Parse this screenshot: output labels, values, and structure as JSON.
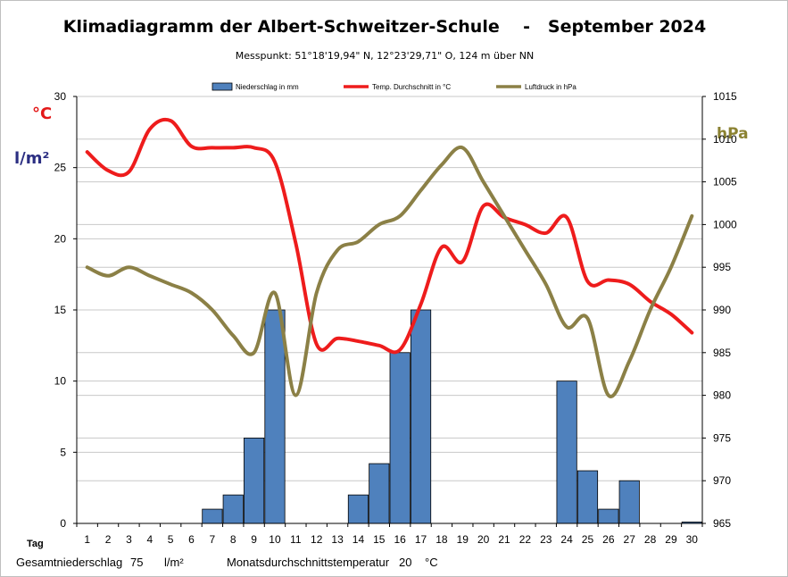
{
  "chart_data": {
    "type": "bar+line",
    "title": "Klimadiagramm der Albert-Schweitzer-Schule    -   September 2024",
    "subtitle": "Messpunkt:  51°18'19,94\" N,  12°23'29,71\" O,  124 m über NN",
    "xlabel": "Tag",
    "categories": [
      "1",
      "2",
      "3",
      "4",
      "5",
      "6",
      "7",
      "8",
      "9",
      "10",
      "11",
      "12",
      "13",
      "14",
      "15",
      "16",
      "17",
      "18",
      "19",
      "20",
      "21",
      "22",
      "23",
      "24",
      "25",
      "26",
      "27",
      "28",
      "29",
      "30"
    ],
    "left_axis": {
      "unit_temp": "°C",
      "unit_rain": "l/m²",
      "ylim": [
        0,
        30
      ],
      "ticks": [
        "0",
        "5",
        "10",
        "15",
        "20",
        "25",
        "30"
      ]
    },
    "right_axis": {
      "unit": "hPa",
      "ylim": [
        965,
        1015
      ],
      "ticks": [
        "965",
        "970",
        "975",
        "980",
        "985",
        "990",
        "995",
        "1000",
        "1005",
        "1010",
        "1015"
      ]
    },
    "grid": true,
    "legend_position": "top",
    "series": [
      {
        "name": "Niederschlag in mm",
        "type": "bar",
        "axis": "left",
        "color": "#4f81bd",
        "values": [
          0,
          0,
          0,
          0,
          0,
          0,
          1,
          2,
          6,
          15,
          0,
          0,
          0,
          2,
          4.2,
          12,
          15,
          0,
          0,
          0,
          0,
          0,
          0,
          10,
          3.7,
          1,
          3,
          0,
          0,
          0.1
        ]
      },
      {
        "name": "Temp. Durchschnitt in °C",
        "type": "line",
        "axis": "left",
        "color": "#ee1c1c",
        "values": [
          26.1,
          24.8,
          24.7,
          27.7,
          28.3,
          26.5,
          26.4,
          26.4,
          26.4,
          25.4,
          19.7,
          12.6,
          13.0,
          12.8,
          12.5,
          12.2,
          15.4,
          19.4,
          18.4,
          22.3,
          21.5,
          21.0,
          20.4,
          21.5,
          17.0,
          17.1,
          16.8,
          15.6,
          14.7,
          13.4
        ]
      },
      {
        "name": "Luftdruck in hPa",
        "type": "line",
        "axis": "right",
        "color": "#8b8046",
        "values": [
          995,
          994,
          995,
          994,
          993,
          992,
          990,
          987,
          985,
          992,
          980,
          992,
          997,
          998,
          1000,
          1001,
          1004,
          1007,
          1009,
          1005,
          1001,
          997,
          993,
          988,
          989,
          980,
          984,
          990,
          995,
          1001
        ]
      }
    ]
  },
  "footer": {
    "total_rain_label": "Gesamtniederschlag",
    "total_rain_value": "75",
    "total_rain_unit": "l/m²",
    "avg_temp_label": "Monatsdurchschnittstemperatur",
    "avg_temp_value": "20",
    "avg_temp_unit": "°C"
  }
}
